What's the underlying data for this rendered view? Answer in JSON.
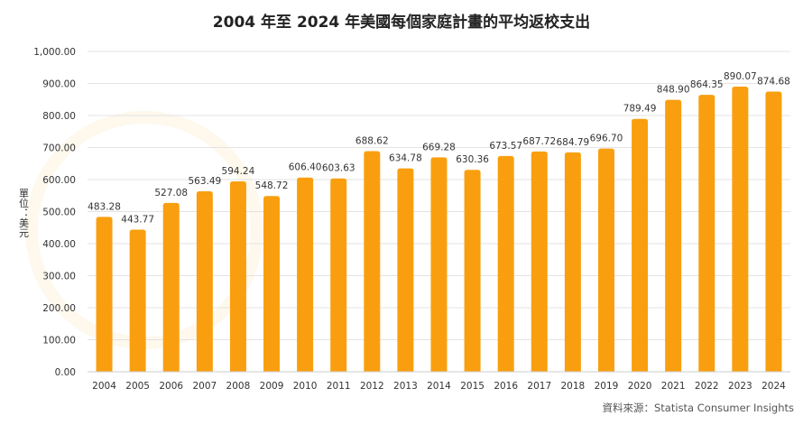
{
  "chart_data": {
    "type": "bar",
    "title": "2004 年至 2024 年美國每個家庭計畫的平均返校支出",
    "ylabel": "單位：美元",
    "xlabel": "",
    "source": "資料來源：Statista Consumer Insights",
    "categories": [
      "2004",
      "2005",
      "2006",
      "2007",
      "2008",
      "2009",
      "2010",
      "2011",
      "2012",
      "2013",
      "2014",
      "2015",
      "2016",
      "2017",
      "2018",
      "2019",
      "2020",
      "2021",
      "2022",
      "2023",
      "2024"
    ],
    "values": [
      483.28,
      443.77,
      527.08,
      563.49,
      594.24,
      548.72,
      606.4,
      603.63,
      688.62,
      634.78,
      669.28,
      630.36,
      673.57,
      687.72,
      684.79,
      696.7,
      789.49,
      848.9,
      864.35,
      890.07,
      874.68
    ],
    "value_labels": [
      "483.28",
      "443.77",
      "527.08",
      "563.49",
      "594.24",
      "548.72",
      "606.40",
      "603.63",
      "688.62",
      "634.78",
      "669.28",
      "630.36",
      "673.57",
      "687.72",
      "684.79",
      "696.70",
      "789.49",
      "848.90",
      "864.35",
      "890.07",
      "874.68"
    ],
    "yticks": [
      "0.00",
      "100.00",
      "200.00",
      "300.00",
      "400.00",
      "500.00",
      "600.00",
      "700.00",
      "800.00",
      "900.00",
      "1,000.00"
    ],
    "ylim": [
      0,
      1000
    ],
    "grid": true,
    "legend": "none",
    "bar_color": "#f99f0f"
  }
}
